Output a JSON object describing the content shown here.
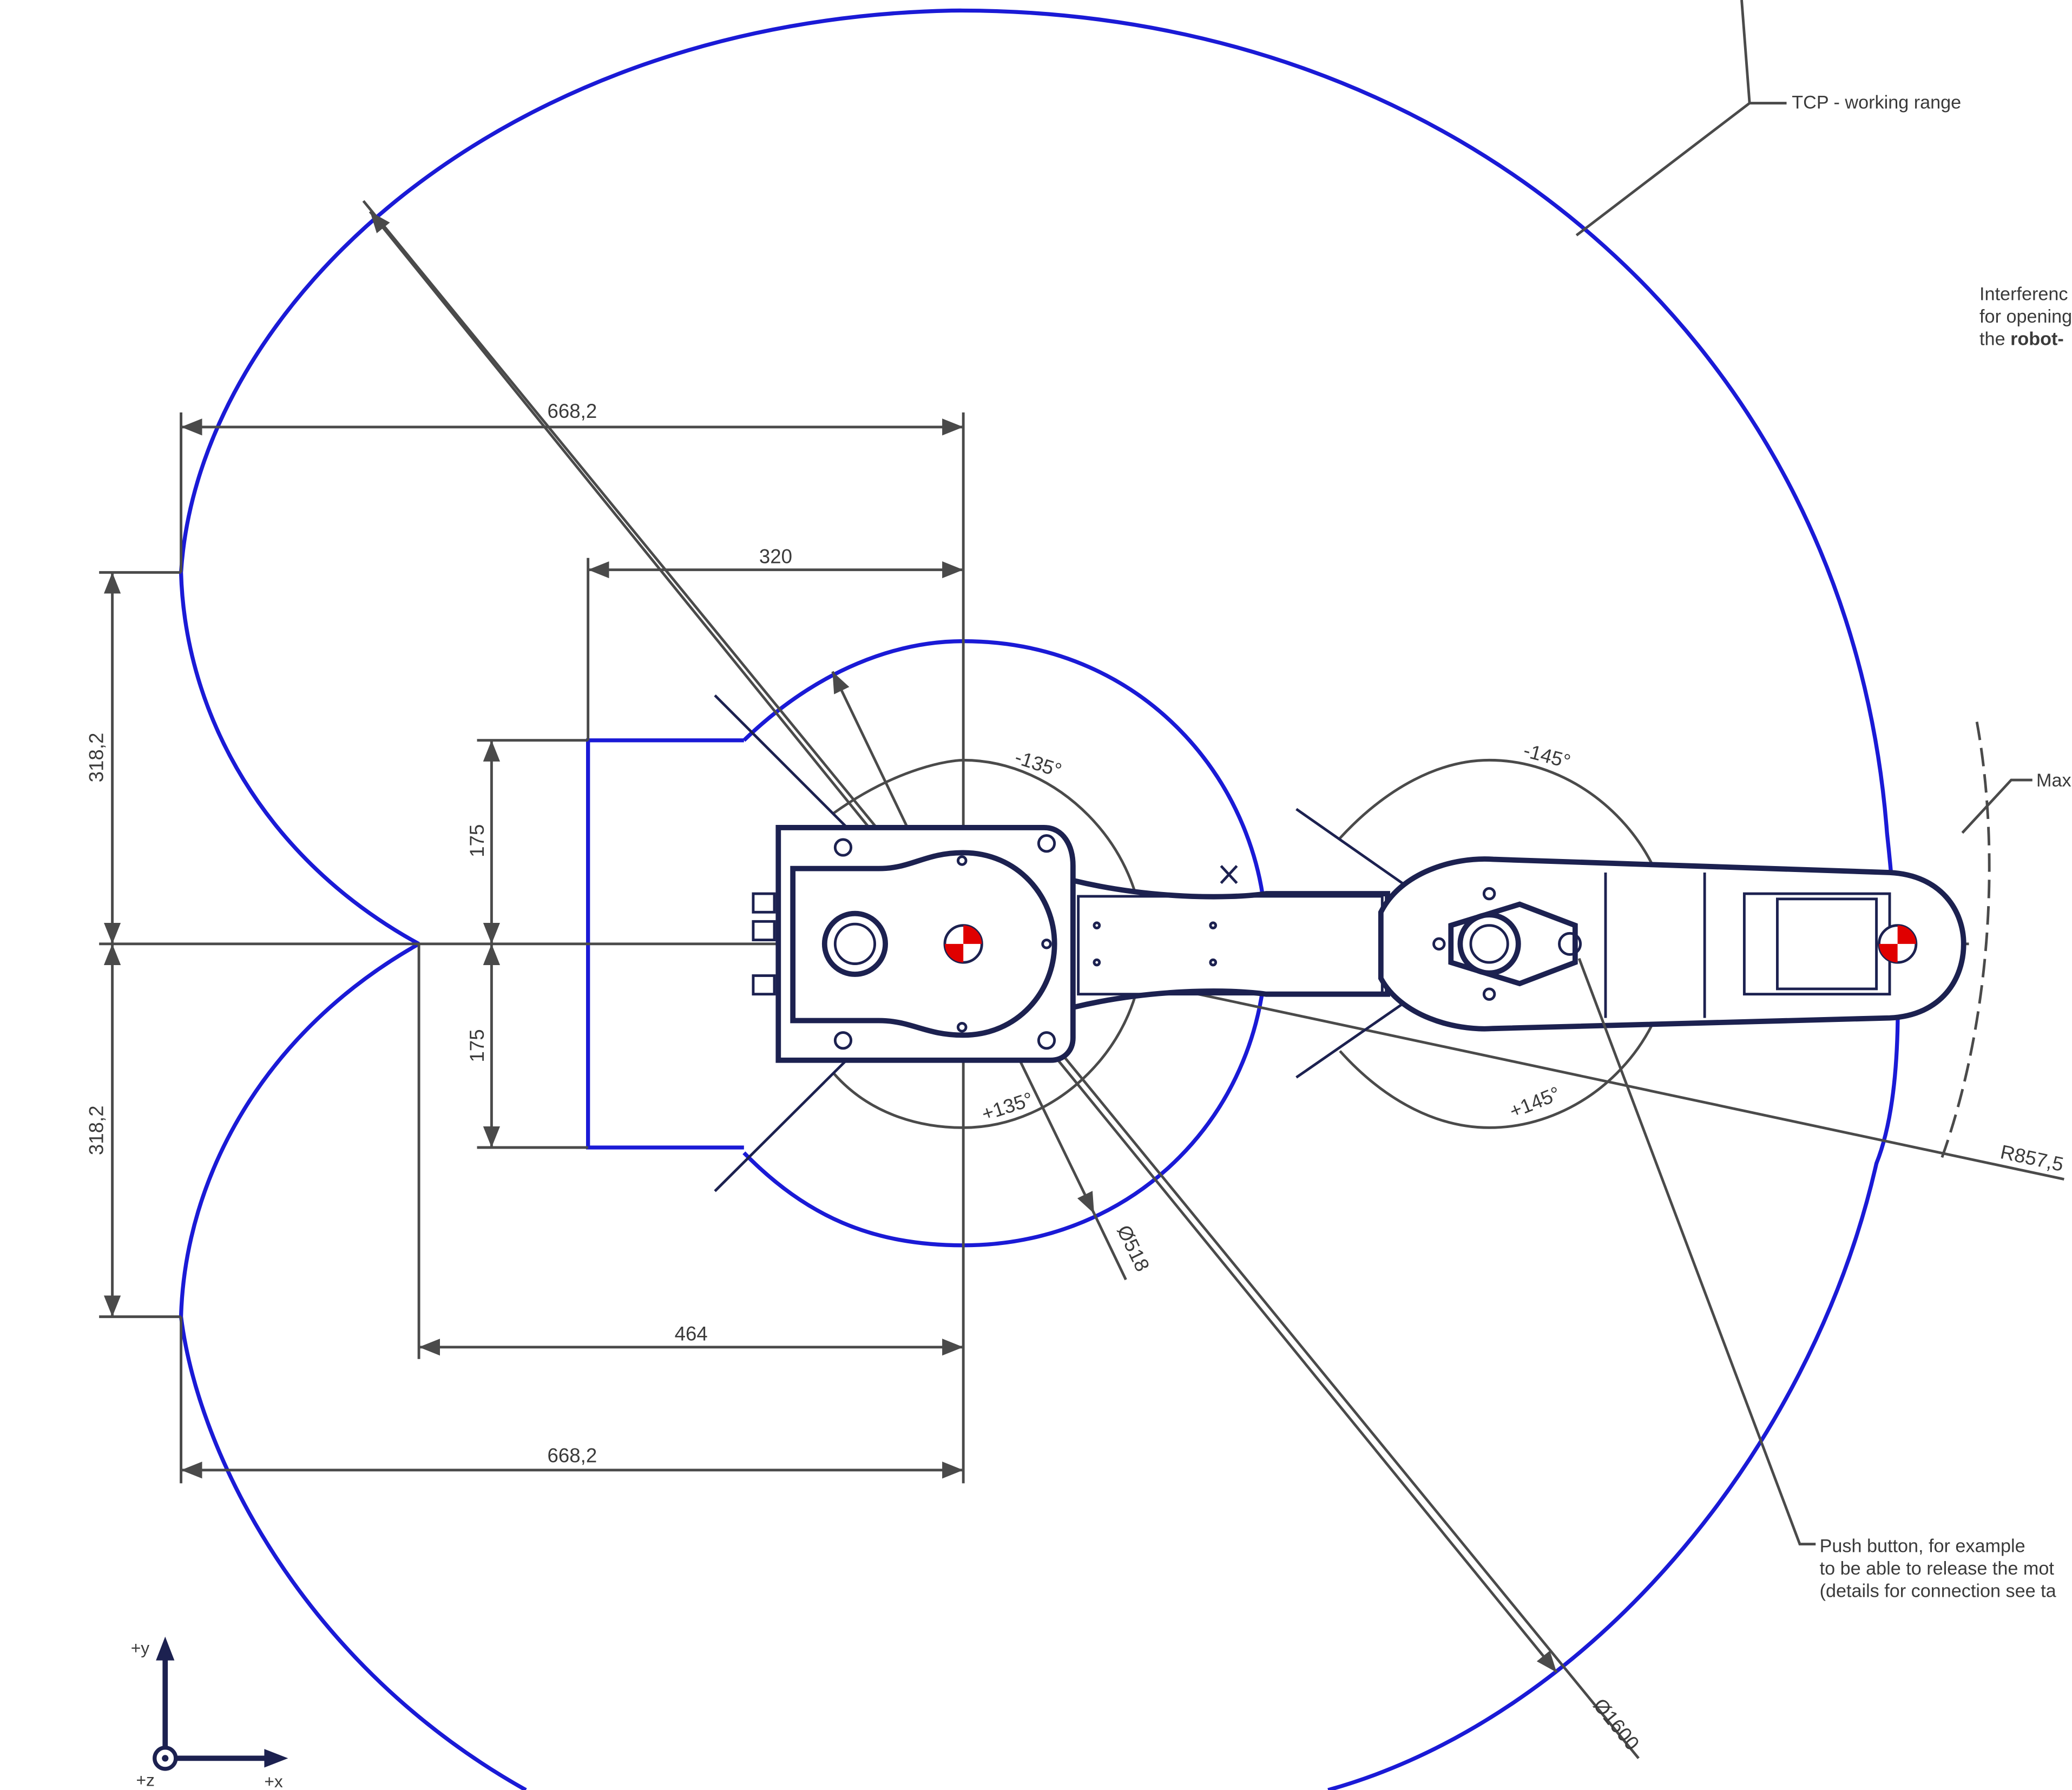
{
  "diagram": {
    "dimensions": {
      "top_width": "668,2",
      "inner_width": "320",
      "upper_height": "318,2",
      "lower_height": "318,2",
      "upper_inner": "175",
      "lower_inner": "175",
      "cusp_width": "464",
      "bottom_width": "668,2",
      "inner_diameter": "Ø518",
      "outer_diameter": "Ø1600",
      "radius": "R857,5"
    },
    "angles": {
      "j1_neg": "-135°",
      "j1_pos": "+135°",
      "j2_neg": "-145°",
      "j2_pos": "+145°"
    },
    "callouts": {
      "tcp_range": "TCP - working range",
      "interference_line1": "Interferenc",
      "interference_line2": "for opening",
      "interference_line3_prefix": "the ",
      "interference_line3_bold": "robot-",
      "max_label": "Max",
      "push_line1": "Push button, for example",
      "push_line2": "to be able to release the mot",
      "push_line3": "(details for connection see ta"
    },
    "axes": {
      "y_label": "+y",
      "x_label": "+x",
      "z_label": "+z"
    },
    "colors": {
      "working_range": "#1a1ad6",
      "robot_outline": "#1c2150",
      "center_marker": "#e00000",
      "dimension_lines": "#4a4a4a"
    }
  }
}
